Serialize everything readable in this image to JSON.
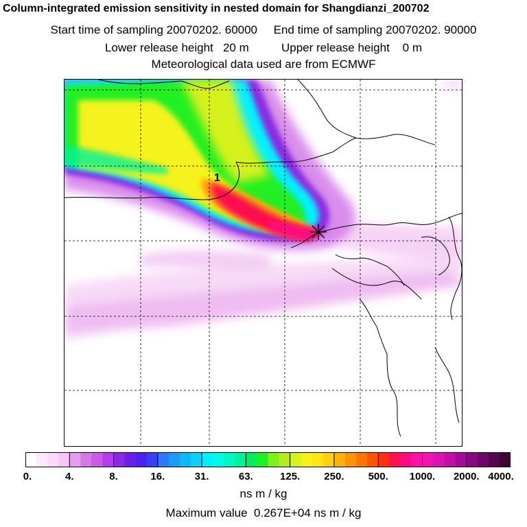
{
  "title": "Column-integrated emission sensitivity in nested domain for Shangdianzi_200702",
  "start_line": "Start time of sampling 20070202. 60000     End time of sampling 20070202. 90000",
  "height_line": "Lower release height   20 m          Upper release height    0 m",
  "met_line": "Meteorological data used are from ECMWF",
  "map": {
    "cluster_label": "1",
    "receptor_marker": "receptor-star"
  },
  "colorbar": {
    "unit": "ns m / kg",
    "tick_labels": [
      "0.",
      "4.",
      "8.",
      "16.",
      "31.",
      "63.",
      "125.",
      "250.",
      "500.",
      "1000.",
      "2000.",
      "4000."
    ],
    "colors": [
      "#ffffff",
      "#fde9fd",
      "#fadafa",
      "#f6c6f6",
      "#e39ef0",
      "#d47ae8",
      "#c95ce6",
      "#b43ee9",
      "#8a2be2",
      "#6a1fe6",
      "#4b22f0",
      "#3640f5",
      "#2b7bf8",
      "#1c9bfa",
      "#10b7fb",
      "#0ad0fb",
      "#00f0ff",
      "#00fbe8",
      "#00f7c4",
      "#00f29a",
      "#00ec5f",
      "#20f020",
      "#7ef01e",
      "#b4ee1a",
      "#d8f21c",
      "#f6f21a",
      "#ffe418",
      "#ffd015",
      "#ffb10f",
      "#ff9308",
      "#ff7404",
      "#ff5200",
      "#ff3010",
      "#ff1050",
      "#ff0a80",
      "#ff12a8",
      "#f015b0",
      "#d814b0",
      "#c010a8",
      "#a20b9c",
      "#88087f",
      "#6e0866",
      "#55064f",
      "#3f0438"
    ]
  },
  "max_value_text": "Maximum value  0.267E+04 ns m / kg"
}
